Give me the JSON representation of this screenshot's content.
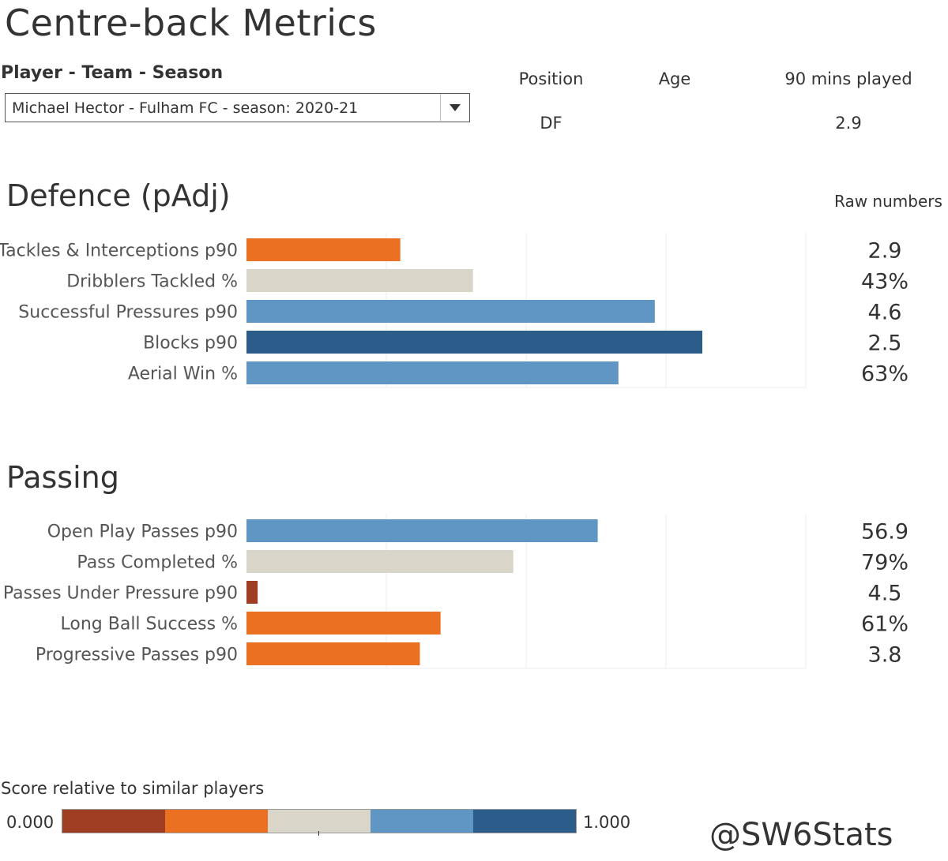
{
  "title": "Centre-back Metrics",
  "selector": {
    "label": "Player - Team - Season",
    "value": "Michael Hector - Fulham FC - season: 2020-21"
  },
  "info": {
    "position_label": "Position",
    "age_label": "Age",
    "mins_label": "90 mins played",
    "position_value": "DF",
    "age_value": "",
    "mins_value": "2.9"
  },
  "raw_header": "Raw numbers",
  "colors": {
    "very_low": "#9e3d22",
    "low": "#eb7022",
    "mid": "#d9d5c9",
    "high": "#6096c4",
    "very_high": "#2b5c8a"
  },
  "chart_data": [
    {
      "type": "bar",
      "orientation": "horizontal",
      "title": "Defence (pAdj)",
      "xlim": [
        0,
        1
      ],
      "grid": true,
      "categories": [
        "Tackles & Interceptions p90",
        "Dribblers Tackled %",
        "Successful Pressures p90",
        "Blocks p90",
        "Aerial Win %"
      ],
      "values": [
        0.275,
        0.405,
        0.73,
        0.815,
        0.665
      ],
      "colors": [
        "#eb7022",
        "#d9d5c9",
        "#6096c4",
        "#2b5c8a",
        "#6096c4"
      ],
      "raw_values": [
        "2.9",
        "43%",
        "4.6",
        "2.5",
        "63%"
      ]
    },
    {
      "type": "bar",
      "orientation": "horizontal",
      "title": "Passing",
      "xlim": [
        0,
        1
      ],
      "grid": true,
      "categories": [
        "Open Play Passes p90",
        "Pass Completed %",
        "Passes Under Pressure p90",
        "Long Ball Success %",
        "Progressive Passes p90"
      ],
      "values": [
        0.628,
        0.477,
        0.02,
        0.347,
        0.31
      ],
      "colors": [
        "#6096c4",
        "#d9d5c9",
        "#9e3d22",
        "#eb7022",
        "#eb7022"
      ],
      "raw_values": [
        "56.9",
        "79%",
        "4.5",
        "61%",
        "3.8"
      ]
    }
  ],
  "legend": {
    "title": "Score relative to similar players",
    "min": "0.000",
    "max": "1.000",
    "segments": [
      "#9e3d22",
      "#eb7022",
      "#d9d5c9",
      "#6096c4",
      "#2b5c8a"
    ]
  },
  "credit": "@SW6Stats"
}
